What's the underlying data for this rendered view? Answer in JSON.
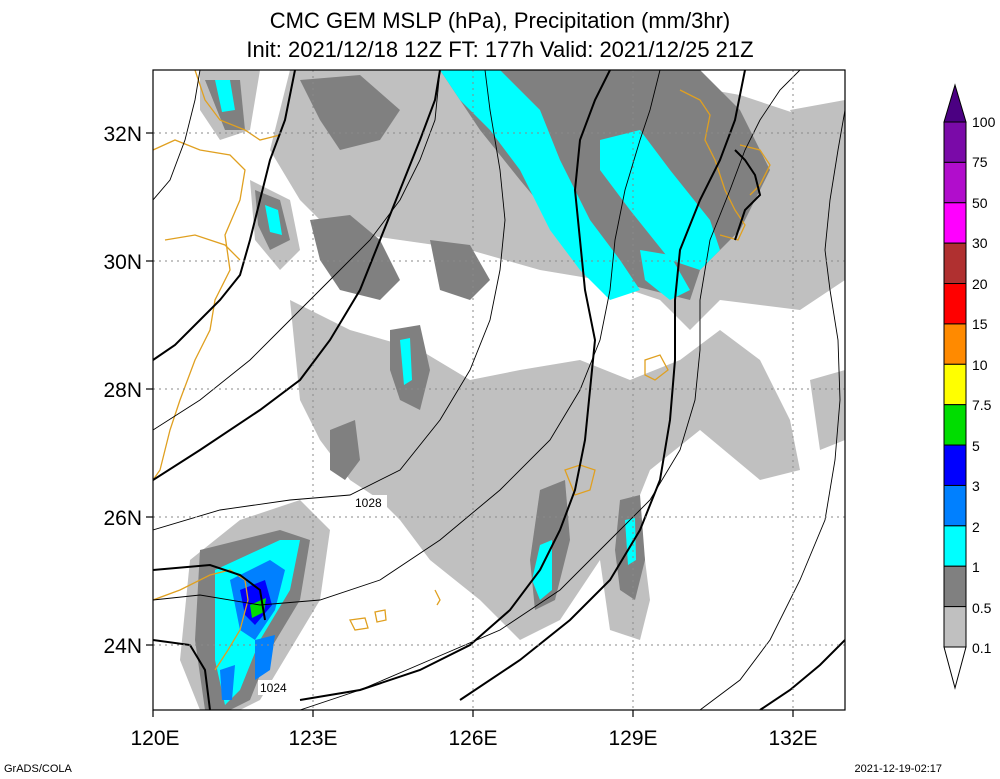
{
  "title": {
    "line1": "CMC GEM MSLP (hPa), Precipitation (mm/3hr)",
    "line2": "Init: 2021/12/18 12Z  FT: 177h  Valid: 2021/12/25 21Z"
  },
  "axes": {
    "lat_labels": [
      "32N",
      "30N",
      "28N",
      "26N",
      "24N"
    ],
    "lon_labels": [
      "120E",
      "123E",
      "126E",
      "129E",
      "132E"
    ]
  },
  "contour_labels": [
    "1028",
    "1024"
  ],
  "colorbar": {
    "labels": [
      "100",
      "75",
      "50",
      "30",
      "20",
      "15",
      "10",
      "7.5",
      "5",
      "3",
      "2",
      "1",
      "0.5",
      "0.1"
    ],
    "colors": [
      "#7a0aa8",
      "#b10dcc",
      "#ff00ff",
      "#b03030",
      "#ff0000",
      "#ff8a00",
      "#ffff00",
      "#00dd00",
      "#0000ff",
      "#0080ff",
      "#00ffff",
      "#808080",
      "#c0c0c0",
      "#ffffff"
    ],
    "top_color": "#4b0082"
  },
  "colors": {
    "precip_light": "#c0c0c0",
    "precip_mid": "#808080",
    "precip_cyan": "#00ffff",
    "precip_blue": "#0080ff",
    "precip_dblue": "#0000ff",
    "precip_green": "#00dd00",
    "coast": "#e0a020"
  },
  "footer": {
    "left": "GrADS/COLA",
    "right": "2021-12-19-02:17"
  }
}
